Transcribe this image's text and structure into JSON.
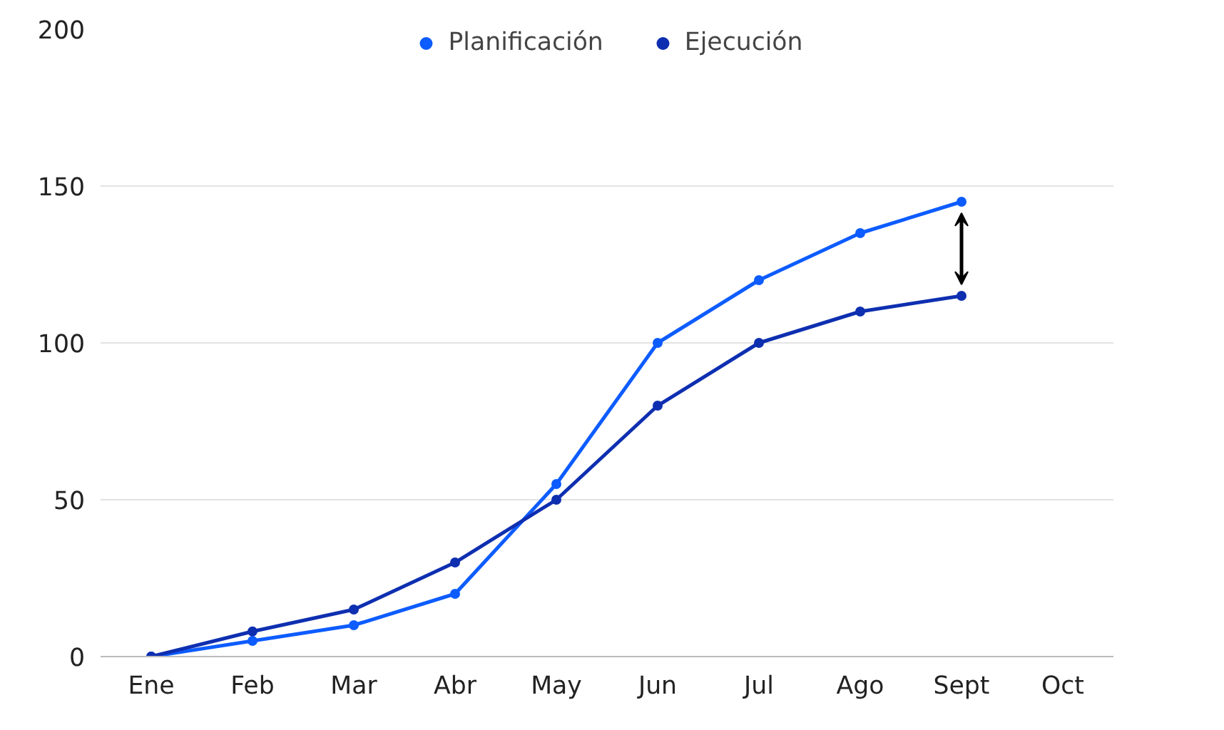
{
  "chart_data": {
    "type": "line",
    "categories": [
      "Ene",
      "Feb",
      "Mar",
      "Abr",
      "May",
      "Jun",
      "Jul",
      "Ago",
      "Sept",
      "Oct"
    ],
    "series": [
      {
        "name": "Planificación",
        "color": "#0d5cff",
        "values": [
          0,
          5,
          10,
          20,
          55,
          100,
          120,
          135,
          145,
          null
        ]
      },
      {
        "name": "Ejecución",
        "color": "#0e2fb0",
        "values": [
          0,
          8,
          15,
          30,
          50,
          80,
          100,
          110,
          115,
          null
        ]
      }
    ],
    "ylim": [
      0,
      200
    ],
    "yticks": [
      0,
      50,
      100,
      150,
      200
    ],
    "grid": "y",
    "legend": "top",
    "marker": "circle",
    "line_style": "solid"
  }
}
